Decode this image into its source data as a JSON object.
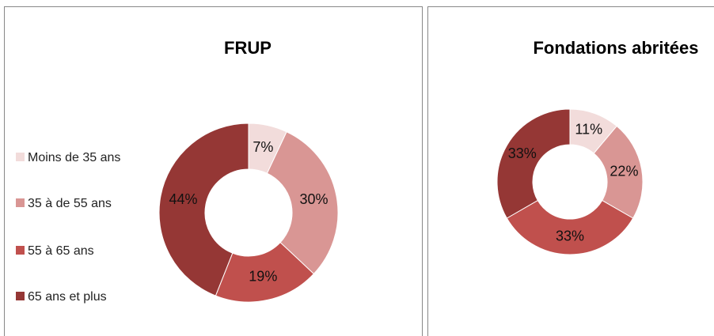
{
  "chart_data": [
    {
      "type": "pie",
      "title": "FRUP",
      "categories": [
        "Moins de 35 ans",
        "35 à de 55 ans",
        "55 à 65 ans",
        "65 ans et plus"
      ],
      "values": [
        7,
        30,
        19,
        44
      ],
      "value_labels": [
        "7%",
        "30%",
        "19%",
        "44%"
      ],
      "colors": [
        "#f2dcdb",
        "#d99694",
        "#c0504d",
        "#953735"
      ],
      "legend": "left"
    },
    {
      "type": "pie",
      "title": "Fondations abritées",
      "values": [
        11,
        22,
        33,
        33
      ],
      "value_labels": [
        "11%",
        "22%",
        "33%",
        "33%"
      ],
      "colors": [
        "#f2dcdb",
        "#d99694",
        "#c0504d",
        "#953735"
      ]
    }
  ]
}
